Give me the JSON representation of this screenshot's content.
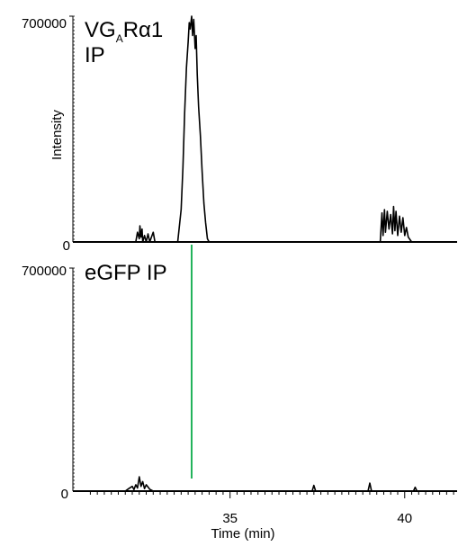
{
  "chart_data": {
    "type": "line",
    "xlabel": "Time (min)",
    "ylabel": "Intensity",
    "xlim": [
      30.5,
      41.5
    ],
    "x_ticks": [
      "35",
      "40"
    ],
    "x_minor_step": 0.2,
    "marker_line": {
      "x": 33.9,
      "color": "#22b35a"
    },
    "panels": [
      {
        "label_parts": [
          "VG",
          "A",
          "Rα1"
        ],
        "label_line2": "IP",
        "ylim": [
          0,
          700000
        ],
        "y_ticks": [
          "0",
          "700000"
        ],
        "peaks": [
          {
            "x": [
              32.3,
              32.35,
              32.4,
              32.42,
              32.45,
              32.48,
              32.5,
              32.55,
              32.6,
              32.65,
              32.7,
              32.75,
              32.8,
              32.85
            ],
            "y": [
              0,
              30000,
              10000,
              50000,
              15000,
              40000,
              0,
              20000,
              0,
              25000,
              0,
              15000,
              30000,
              0
            ]
          },
          {
            "x": [
              33.5,
              33.6,
              33.65,
              33.7,
              33.75,
              33.8,
              33.83,
              33.86,
              33.9,
              33.93,
              33.96,
              34.0,
              34.03,
              34.06,
              34.1,
              34.15,
              34.2,
              34.25,
              34.3,
              34.35,
              34.4
            ],
            "y": [
              0,
              100000,
              230000,
              400000,
              540000,
              620000,
              680000,
              660000,
              700000,
              640000,
              690000,
              600000,
              640000,
              520000,
              420000,
              330000,
              220000,
              120000,
              60000,
              10000,
              0
            ]
          },
          {
            "x": [
              39.3,
              39.35,
              39.38,
              39.42,
              39.45,
              39.5,
              39.55,
              39.6,
              39.65,
              39.68,
              39.72,
              39.75,
              39.8,
              39.85,
              39.9,
              39.95,
              40.0,
              40.05,
              40.1,
              40.2
            ],
            "y": [
              0,
              90000,
              20000,
              100000,
              30000,
              95000,
              40000,
              85000,
              25000,
              110000,
              35000,
              95000,
              20000,
              80000,
              30000,
              75000,
              20000,
              45000,
              15000,
              0
            ]
          }
        ]
      },
      {
        "label_parts": [
          "eGFP IP"
        ],
        "label_line2": "",
        "ylim": [
          0,
          700000
        ],
        "y_ticks": [
          "0",
          "700000"
        ],
        "peaks": [
          {
            "x": [
              32.0,
              32.1,
              32.2,
              32.25,
              32.3,
              32.35,
              32.4,
              32.45,
              32.5,
              32.55,
              32.6,
              32.7,
              32.8
            ],
            "y": [
              0,
              8000,
              15000,
              5000,
              20000,
              10000,
              45000,
              15000,
              30000,
              8000,
              20000,
              6000,
              0
            ]
          },
          {
            "x": [
              37.35,
              37.4,
              37.45
            ],
            "y": [
              0,
              18000,
              0
            ]
          },
          {
            "x": [
              38.95,
              39.0,
              39.05
            ],
            "y": [
              0,
              25000,
              0
            ]
          },
          {
            "x": [
              40.25,
              40.3,
              40.35
            ],
            "y": [
              0,
              12000,
              0
            ]
          }
        ]
      }
    ]
  }
}
